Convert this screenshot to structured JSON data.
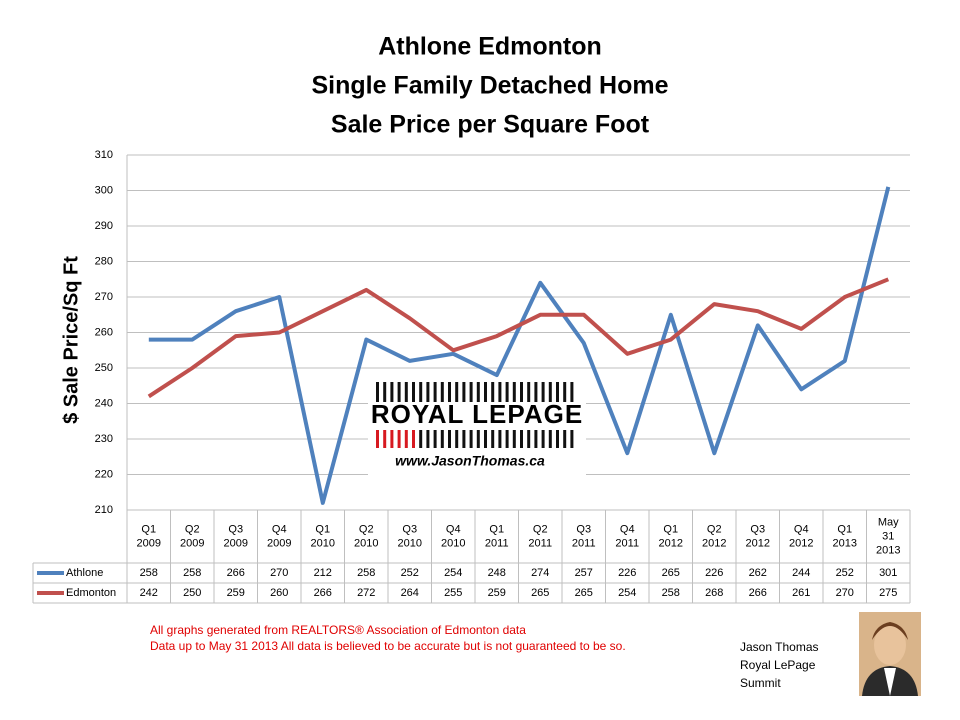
{
  "chart_data": {
    "type": "line",
    "title": [
      "Athlone Edmonton",
      "Single Family Detached Home",
      "Sale Price per Square Foot"
    ],
    "y_label": "$ Sale Price/Sq Ft",
    "categories": [
      [
        "Q1",
        "2009"
      ],
      [
        "Q2",
        "2009"
      ],
      [
        "Q3",
        "2009"
      ],
      [
        "Q4",
        "2009"
      ],
      [
        "Q1",
        "2010"
      ],
      [
        "Q2",
        "2010"
      ],
      [
        "Q3",
        "2010"
      ],
      [
        "Q4",
        "2010"
      ],
      [
        "Q1",
        "2011"
      ],
      [
        "Q2",
        "2011"
      ],
      [
        "Q3",
        "2011"
      ],
      [
        "Q4",
        "2011"
      ],
      [
        "Q1",
        "2012"
      ],
      [
        "Q2",
        "2012"
      ],
      [
        "Q3",
        "2012"
      ],
      [
        "Q4",
        "2012"
      ],
      [
        "Q1",
        "2013"
      ],
      [
        "May",
        "31",
        "2013"
      ]
    ],
    "series": [
      {
        "name": "Athlone",
        "color": "#4f81bd",
        "values": [
          258,
          258,
          266,
          270,
          212,
          258,
          252,
          254,
          248,
          274,
          257,
          226,
          265,
          226,
          262,
          244,
          252,
          301
        ]
      },
      {
        "name": "Edmonton",
        "color": "#c0504d",
        "values": [
          242,
          250,
          259,
          260,
          266,
          272,
          264,
          255,
          259,
          265,
          265,
          254,
          258,
          268,
          266,
          261,
          270,
          275
        ]
      }
    ],
    "ylim": [
      210,
      310
    ],
    "yticks": [
      210,
      220,
      230,
      240,
      250,
      260,
      270,
      280,
      290,
      300,
      310
    ],
    "grid": true,
    "data_table": true
  },
  "logo": {
    "brand": "ROYAL LEPAGE",
    "url": "www.JasonThomas.ca"
  },
  "footer": [
    "All graphs generated from REALTORS® Association of Edmonton data",
    "Data up to  May 31 2013  All data is believed to be accurate but is not guaranteed to be so."
  ],
  "signature": [
    "Jason Thomas",
    "Royal LePage",
    "Summit"
  ]
}
